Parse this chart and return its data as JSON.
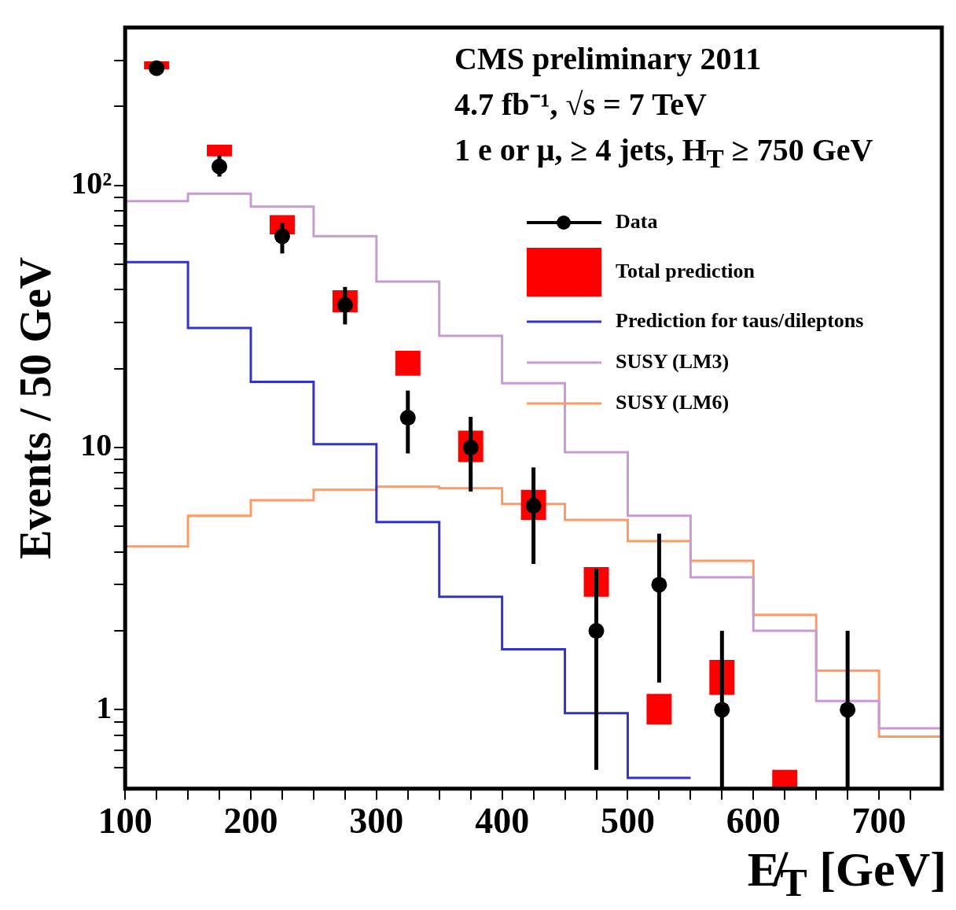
{
  "chart_data": {
    "type": "step",
    "title": "CMS preliminary 2011",
    "subtitle": "4.7 fb⁻¹,  √s = 7 TeV",
    "annotations": [
      "1 e or μ, ≥ 4 jets, H$_{T}$ ≥ 750 GeV"
    ],
    "xlabel": "E̸$_{T}$ [GeV]",
    "ylabel": "Events / 50 GeV",
    "series": [
      {
        "name": "Data",
        "type": "scatter",
        "marker": "circle",
        "color": "#000000",
        "x": [
          125,
          175,
          225,
          275,
          325,
          375,
          425,
          475,
          525,
          575,
          675
        ],
        "values": [
          280,
          118,
          64,
          35,
          13,
          10,
          6,
          2,
          3,
          1,
          1
        ],
        "errors": [
          null,
          [
            108,
            130
          ],
          [
            55,
            72
          ],
          [
            29.5,
            41
          ],
          [
            9.5,
            16.5
          ],
          [
            6.8,
            13.1
          ],
          [
            3.6,
            8.4
          ],
          [
            0.59,
            3.45
          ],
          [
            1.27,
            4.7
          ],
          [
            0.5,
            2
          ],
          [
            0.5,
            2
          ]
        ]
      },
      {
        "name": "Total prediction",
        "type": "bar",
        "color": "#ff0000",
        "x": [
          125,
          175,
          225,
          275,
          325,
          375,
          425,
          475,
          525,
          575,
          625
        ],
        "base": [
          277,
          129,
          65,
          32.8,
          18.8,
          8.8,
          5.3,
          2.7,
          0.88,
          1.14,
          0.5
        ],
        "values": [
          20,
          14,
          12,
          7,
          4.6,
          2.8,
          1.6,
          0.8,
          0.27,
          0.41,
          0.09
        ]
      },
      {
        "name": "Prediction for taus/dileptons",
        "color": "#3333cc",
        "x": [
          100,
          150,
          200,
          250,
          300,
          350,
          400,
          450,
          500,
          550
        ],
        "values": [
          51,
          28.6,
          17.8,
          10.3,
          5.2,
          2.7,
          1.7,
          0.97,
          0.55,
          0.55
        ]
      },
      {
        "name": "SUSY (LM3)",
        "color": "#c89bd2",
        "x": [
          100,
          150,
          200,
          250,
          300,
          350,
          400,
          450,
          500,
          550,
          600,
          650,
          700,
          750
        ],
        "values": [
          87,
          93,
          83,
          64,
          43,
          26.7,
          17.6,
          9.6,
          5.5,
          3.2,
          2.0,
          1.08,
          0.85,
          0.85
        ]
      },
      {
        "name": "SUSY (LM6)",
        "color": "#ff9966",
        "x": [
          100,
          150,
          200,
          250,
          300,
          350,
          400,
          450,
          500,
          550,
          600,
          650,
          700,
          750
        ],
        "values": [
          4.2,
          5.5,
          6.3,
          6.9,
          7.1,
          7.0,
          6.1,
          5.3,
          4.4,
          3.7,
          2.3,
          1.41,
          0.79,
          0.79
        ]
      }
    ],
    "log": "y",
    "xlim": [
      100,
      750
    ],
    "xticks": [
      100,
      {
        "value": 125,
        "label": null
      },
      {
        "value": 150,
        "label": null
      },
      {
        "value": 175,
        "label": null
      },
      200,
      {
        "value": 225,
        "label": null
      },
      {
        "value": 250,
        "label": null
      },
      {
        "value": 275,
        "label": null
      },
      300,
      {
        "value": 325,
        "label": null
      },
      {
        "value": 350,
        "label": null
      },
      {
        "value": 375,
        "label": null
      },
      400,
      {
        "value": 425,
        "label": null
      },
      {
        "value": 450,
        "label": null
      },
      {
        "value": 475,
        "label": null
      },
      500,
      {
        "value": 525,
        "label": null
      },
      {
        "value": 550,
        "label": null
      },
      {
        "value": 575,
        "label": null
      },
      600,
      {
        "value": 625,
        "label": null
      },
      {
        "value": 650,
        "label": null
      },
      {
        "value": 675,
        "label": null
      },
      700,
      {
        "value": 725,
        "label": null
      }
    ],
    "ylim": [
      0.5,
      400
    ],
    "yticks": [
      {
        "value": 0.6,
        "label": null
      },
      {
        "value": 0.7,
        "label": null
      },
      {
        "value": 0.8,
        "label": null
      },
      {
        "value": 0.9,
        "label": null
      },
      1,
      {
        "value": 2,
        "label": null
      },
      {
        "value": 3,
        "label": null
      },
      {
        "value": 4,
        "label": null
      },
      {
        "value": 5,
        "label": null
      },
      {
        "value": 6,
        "label": null
      },
      {
        "value": 7,
        "label": null
      },
      {
        "value": 8,
        "label": null
      },
      {
        "value": 9,
        "label": null
      },
      10,
      {
        "value": 20,
        "label": null
      },
      {
        "value": 30,
        "label": null
      },
      {
        "value": 40,
        "label": null
      },
      {
        "value": 50,
        "label": null
      },
      {
        "value": 60,
        "label": null
      },
      {
        "value": 70,
        "label": null
      },
      {
        "value": 80,
        "label": null
      },
      {
        "value": 90,
        "label": null
      },
      {
        "value": 100,
        "label": "10²"
      },
      {
        "value": 200,
        "label": null
      },
      {
        "value": 300,
        "label": null
      }
    ],
    "legend": "top right"
  }
}
